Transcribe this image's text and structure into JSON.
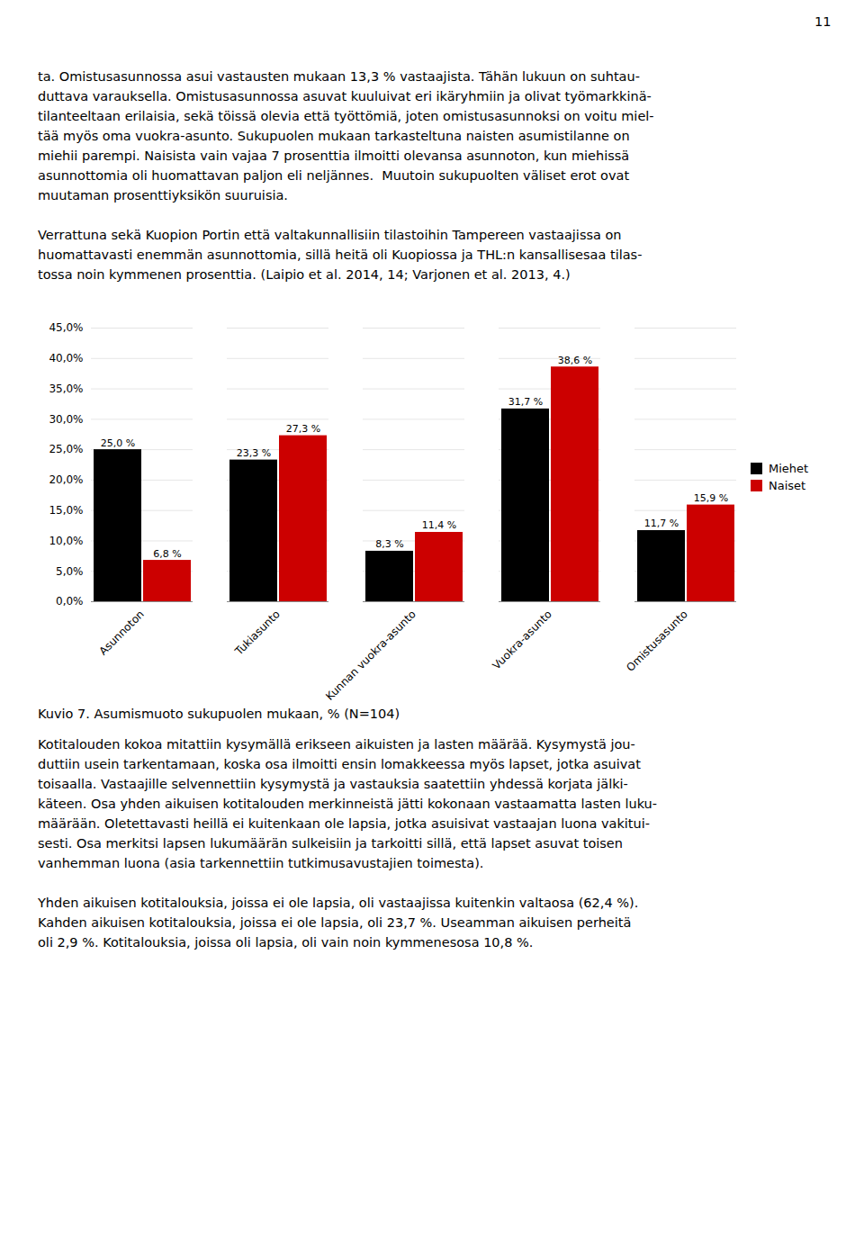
{
  "page": {
    "page_number": "11",
    "text_before": [
      [
        "ta. Omistusasunnossa asui vastausten mukaan 13,3 % vastaajista. Tähän lukuun on suhtau-",
        "duttava varauksella. Omistusasunnossa asuvat kuuluivat eri ikäryhmiin ja olivat työmarkkinä-",
        "tilanteeltaan erilaisia, sekä töissä olevia että työttömiä, joten omistusasunnoksi on voitu miel-",
        "tää myös oma vuokra-asunto. Sukupuolen mukaan tarkasteltuna naisten asumistilanne on",
        "miehii parempi. Naisista vain vajaa 7 prosenttia ilmoitti olevansa asunnoton, kun miehissä",
        "asunnottomia oli huomattavan paljon eli neljännes.  Muutoin sukupuolten väliset erot ovat",
        "muutaman prosenttiyksikön suuruisia."
      ],
      [
        "Verrattuna sekä Kuopion Portin että valtakunnallisiin tilastoihin Tampereen vastaajissa on",
        "huomattavasti enemmän asunnottomia, sillä heitä oli Kuopiossa ja THL:n kansallisesaa tilas-",
        "tossa noin kymmenen prosenttia. (Laipio et al. 2014, 14; Varjonen et al. 2013, 4.)"
      ]
    ],
    "text_after": [
      [
        "Kotitalouden kokoa mitattiin kysymällä erikseen aikuisten ja lasten määrää. Kysymystä jou-",
        "duttiin usein tarkentamaan, koska osa ilmoitti ensin lomakkeessa myös lapset, jotka asuivat",
        "toisaalla. Vastaajille selvennettiin kysymystä ja vastauksia saatettiin yhdessä korjata jälki-",
        "käteen. Osa yhden aikuisen kotitalouden merkinneistä jätti kokonaan vastaamatta lasten luku-",
        "määrään. Oletettavasti heillä ei kuitenkaan ole lapsia, jotka asuisivat vastaajan luona vakitui-",
        "sesti. Osa merkitsi lapsen lukumäärän sulkeisiin ja tarkoitti sillä, että lapset asuvat toisen",
        "vanhemman luona (asia tarkennettiin tutkimusavustajien toimesta)."
      ],
      [
        "Yhden aikuisen kotitalouksia, joissa ei ole lapsia, oli vastaajissa kuitenkin valtaosa (62,4 %).",
        "Kahden aikuisen kotitalouksia, joissa ei ole lapsia, oli 23,7 %. Useamman aikuisen perheitä",
        "oli 2,9 %. Kotitalouksia, joissa oli lapsia, oli vain noin kymmenesosa 10,8 %."
      ]
    ]
  },
  "chart_data": {
    "type": "bar",
    "caption": "Kuvio 7. Asumismuoto sukupuolen mukaan, % (N=104)",
    "categories": [
      "Asunnoton",
      "Tukiasunto",
      "Kunnan vuokra-asunto",
      "Vuokra-asunto",
      "Omistusasunto"
    ],
    "series": [
      {
        "name": "Miehet",
        "color": "#000000",
        "values": [
          25.0,
          23.3,
          8.3,
          31.7,
          11.7
        ],
        "value_labels": [
          "25,0 %",
          "23,3 %",
          "8,3 %",
          "31,7 %",
          "11,7 %"
        ]
      },
      {
        "name": "Naiset",
        "color": "#cc0000",
        "values": [
          6.8,
          27.3,
          11.4,
          38.6,
          15.9
        ],
        "value_labels": [
          "6,8 %",
          "27,3 %",
          "11,4 %",
          "38,6 %",
          "15,9 %"
        ]
      }
    ],
    "ylim": [
      0,
      45
    ],
    "yticks": [
      {
        "value": 0,
        "label": "0,0%"
      },
      {
        "value": 5.0,
        "label": "5,0%"
      },
      {
        "value": 10.0,
        "label": "10,0%"
      },
      {
        "value": 15.0,
        "label": "15,0%"
      },
      {
        "value": 20.0,
        "label": "20,0%"
      },
      {
        "value": 25.0,
        "label": "25,0%"
      },
      {
        "value": 30.0,
        "label": "30,0%"
      },
      {
        "value": 35.0,
        "label": "35,0%"
      },
      {
        "value": 40.0,
        "label": "40,0%"
      },
      {
        "value": 45.0,
        "label": "45,0%"
      }
    ],
    "grid": true,
    "legend": "right",
    "data_labels": true
  }
}
